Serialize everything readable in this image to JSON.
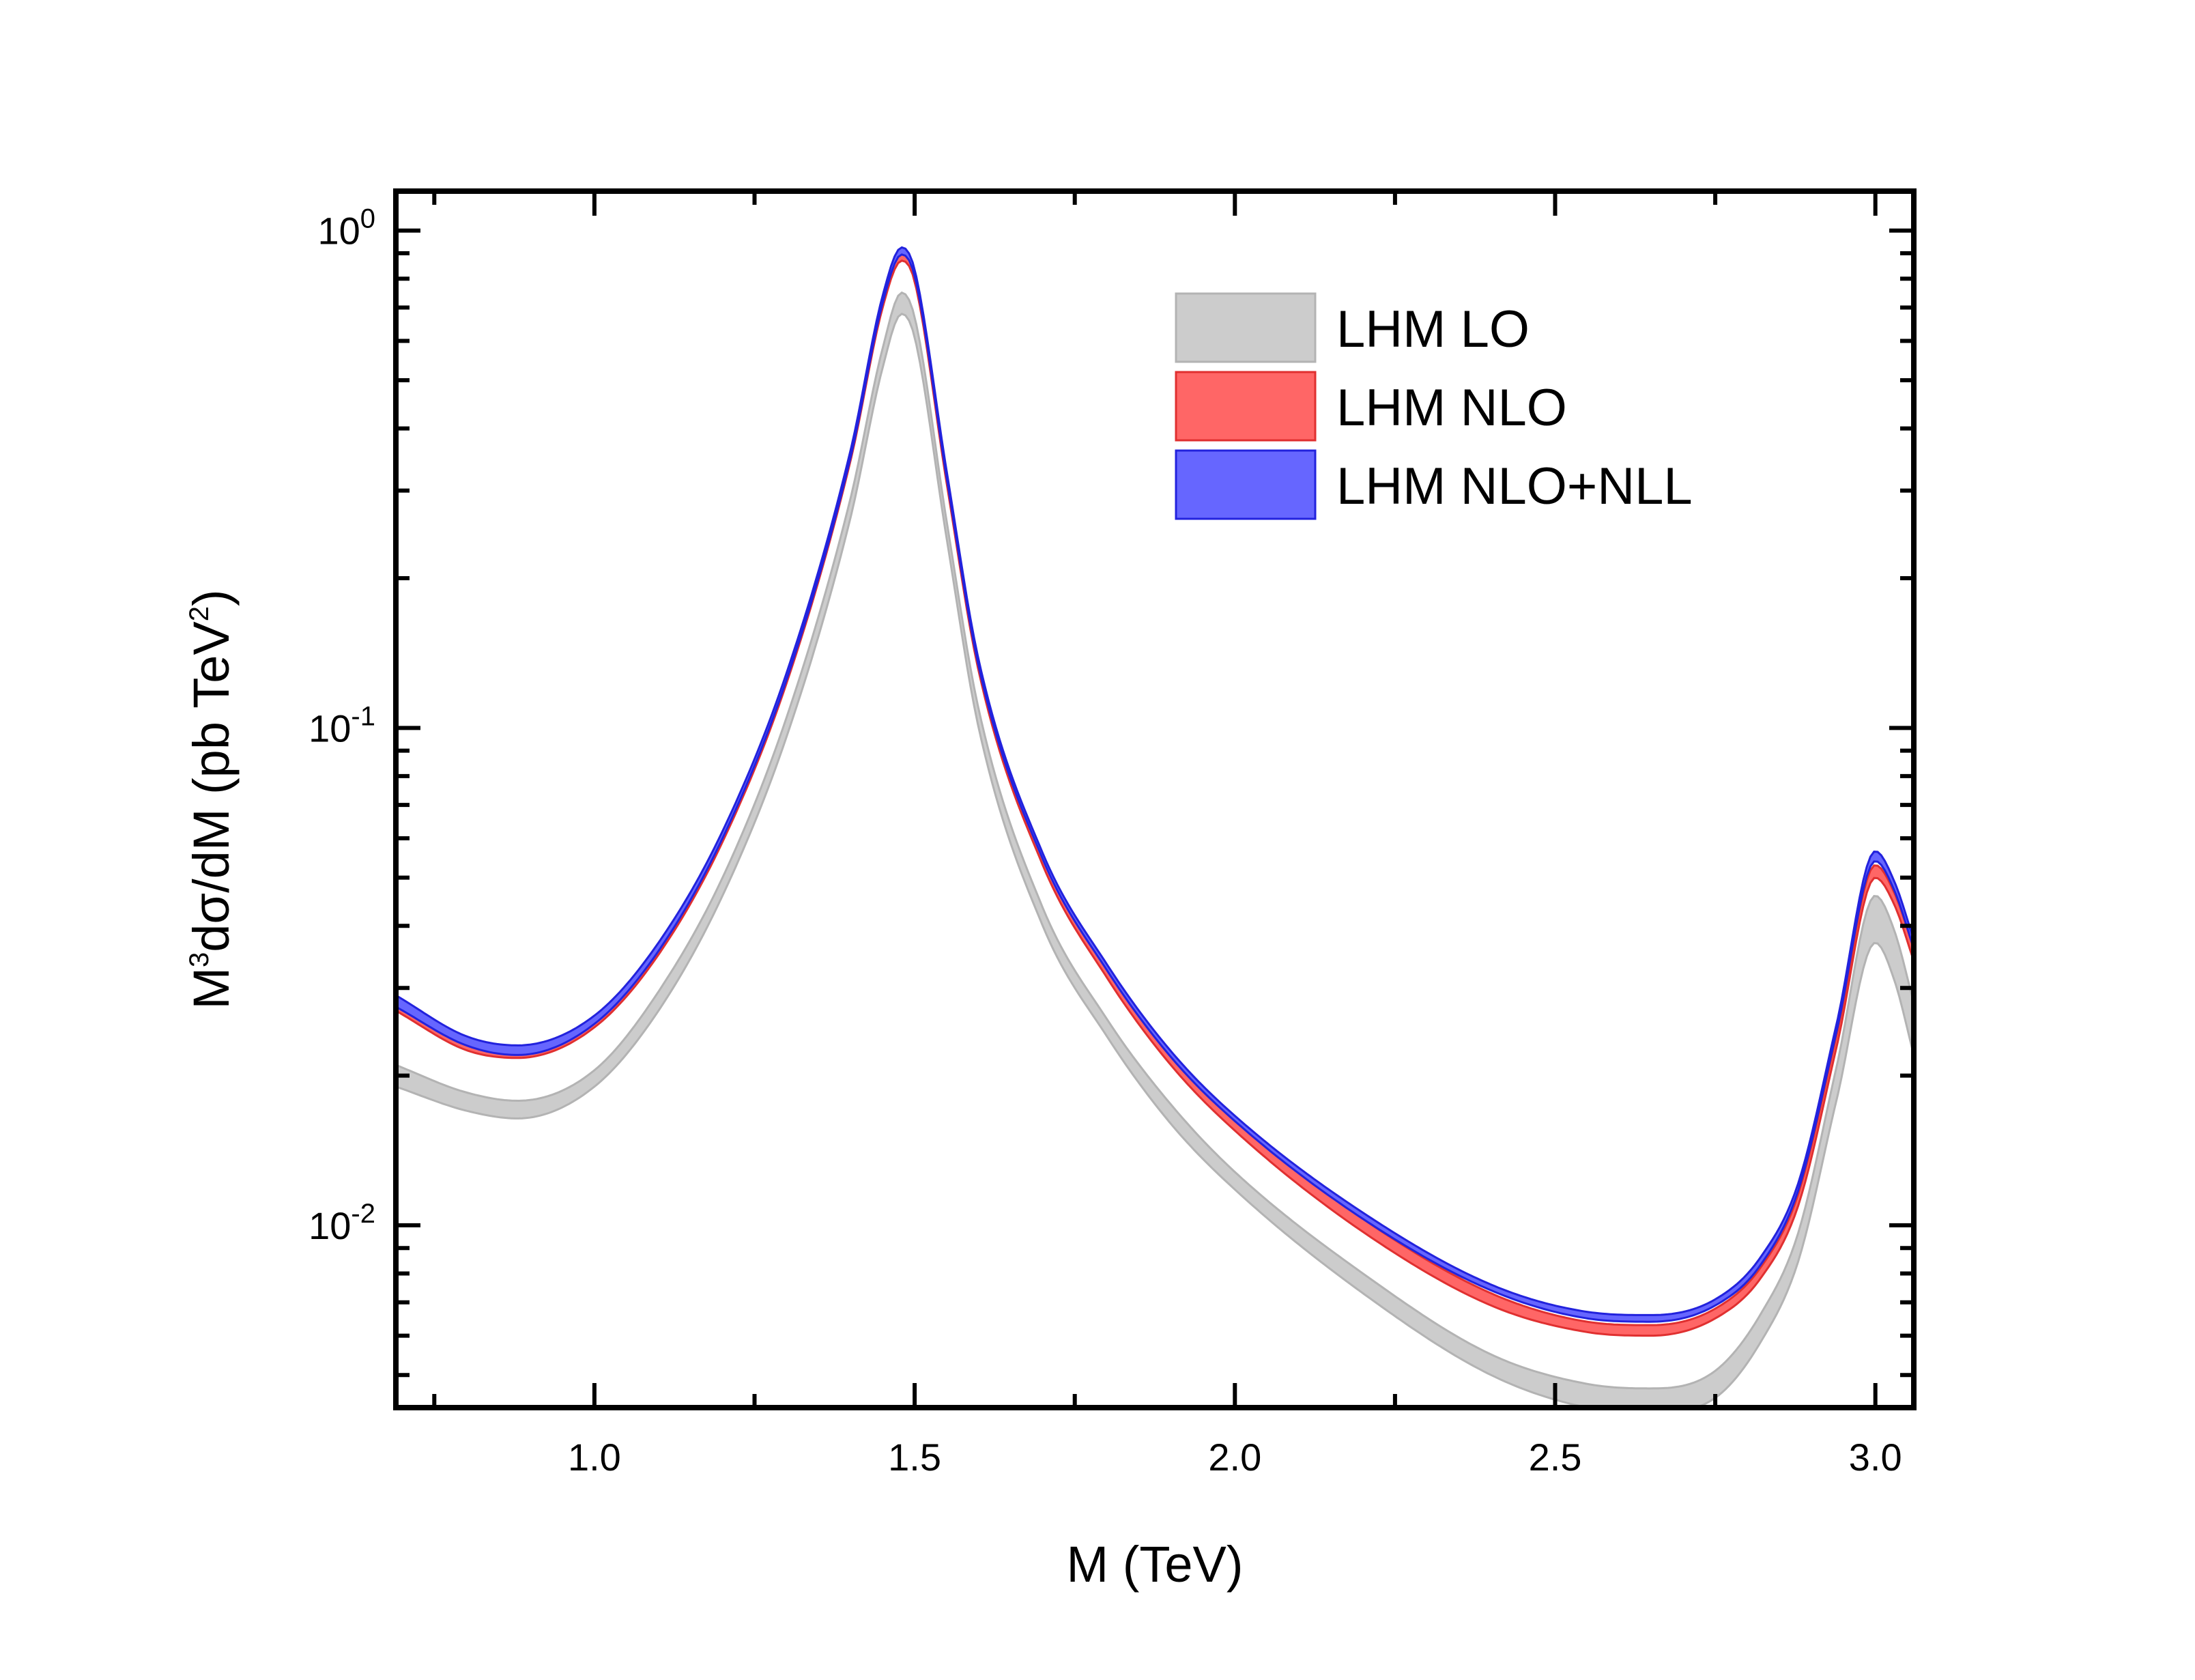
{
  "chart_data": {
    "type": "area",
    "title": "",
    "xlabel": "M (TeV)",
    "ylabel": {
      "pre": "M",
      "pre_sup": "3",
      "mid": "dσ/dM (pb TeV",
      "mid_sup": "2",
      "post": ")"
    },
    "x_range": [
      0.69,
      3.06
    ],
    "y_range": [
      0.0043,
      1.2
    ],
    "y_scale": "log",
    "x_ticks": [
      {
        "value": 1.0,
        "label": "1.0"
      },
      {
        "value": 1.5,
        "label": "1.5"
      },
      {
        "value": 2.0,
        "label": "2.0"
      },
      {
        "value": 2.5,
        "label": "2.5"
      },
      {
        "value": 3.0,
        "label": "3.0"
      }
    ],
    "y_ticks": [
      {
        "value": 1.0,
        "base": "10",
        "exp": "0"
      },
      {
        "value": 0.1,
        "base": "10",
        "exp": "-1"
      },
      {
        "value": 0.01,
        "base": "10",
        "exp": "-2"
      }
    ],
    "legend_position": "top-right",
    "series": [
      {
        "name": "LHM LO",
        "fill": "#cccccc",
        "stroke": "#b3b3b3",
        "x": [
          0.69,
          0.8,
          0.88,
          1.0,
          1.1,
          1.2,
          1.3,
          1.4,
          1.45,
          1.48,
          1.5,
          1.55,
          1.6,
          1.7,
          1.8,
          1.9,
          2.0,
          2.2,
          2.4,
          2.55,
          2.65,
          2.75,
          2.82,
          2.88,
          2.94,
          3.0,
          3.03,
          3.06
        ],
        "low": [
          0.019,
          0.017,
          0.0164,
          0.019,
          0.027,
          0.046,
          0.096,
          0.265,
          0.53,
          0.68,
          0.61,
          0.24,
          0.1,
          0.04,
          0.024,
          0.016,
          0.0118,
          0.0073,
          0.005,
          0.0043,
          0.0042,
          0.0045,
          0.0058,
          0.0085,
          0.018,
          0.037,
          0.031,
          0.022
        ],
        "high": [
          0.021,
          0.0185,
          0.0178,
          0.0205,
          0.0295,
          0.05,
          0.105,
          0.29,
          0.58,
          0.75,
          0.67,
          0.26,
          0.109,
          0.0435,
          0.026,
          0.0175,
          0.0128,
          0.008,
          0.0055,
          0.0048,
          0.0047,
          0.0051,
          0.0066,
          0.0097,
          0.021,
          0.046,
          0.039,
          0.028
        ]
      },
      {
        "name": "LHM NLO",
        "fill": "#ff6666",
        "stroke": "#e03030",
        "x": [
          0.69,
          0.8,
          0.88,
          1.0,
          1.1,
          1.2,
          1.3,
          1.4,
          1.45,
          1.48,
          1.5,
          1.55,
          1.6,
          1.7,
          1.8,
          1.9,
          2.0,
          2.2,
          2.4,
          2.55,
          2.65,
          2.75,
          2.82,
          2.88,
          2.94,
          3.0,
          3.03,
          3.06
        ],
        "low": [
          0.027,
          0.0225,
          0.0217,
          0.025,
          0.035,
          0.059,
          0.123,
          0.345,
          0.7,
          0.87,
          0.79,
          0.31,
          0.13,
          0.053,
          0.0315,
          0.021,
          0.0155,
          0.0097,
          0.0069,
          0.0061,
          0.006,
          0.0065,
          0.0078,
          0.011,
          0.023,
          0.05,
          0.044,
          0.034
        ],
        "high": [
          0.0285,
          0.0236,
          0.0226,
          0.026,
          0.0365,
          0.0612,
          0.1275,
          0.357,
          0.725,
          0.91,
          0.82,
          0.322,
          0.135,
          0.055,
          0.033,
          0.022,
          0.0163,
          0.0103,
          0.0073,
          0.0064,
          0.0063,
          0.0068,
          0.0082,
          0.0116,
          0.0243,
          0.053,
          0.0465,
          0.036
        ]
      },
      {
        "name": "LHM NLO+NLL",
        "fill": "#6666ff",
        "stroke": "#2222dd",
        "x": [
          0.69,
          0.8,
          0.88,
          1.0,
          1.1,
          1.2,
          1.3,
          1.4,
          1.45,
          1.48,
          1.5,
          1.55,
          1.6,
          1.7,
          1.8,
          1.9,
          2.0,
          2.2,
          2.4,
          2.55,
          2.65,
          2.75,
          2.82,
          2.88,
          2.94,
          3.0,
          3.03,
          3.06
        ],
        "low": [
          0.0275,
          0.023,
          0.022,
          0.0254,
          0.0356,
          0.06,
          0.125,
          0.35,
          0.715,
          0.895,
          0.81,
          0.318,
          0.133,
          0.0545,
          0.0326,
          0.0218,
          0.0162,
          0.0103,
          0.0074,
          0.0065,
          0.0064,
          0.0069,
          0.0083,
          0.0118,
          0.0247,
          0.054,
          0.047,
          0.036
        ],
        "high": [
          0.029,
          0.024,
          0.023,
          0.0264,
          0.037,
          0.062,
          0.129,
          0.362,
          0.74,
          0.925,
          0.835,
          0.328,
          0.137,
          0.056,
          0.0335,
          0.0224,
          0.0166,
          0.0106,
          0.0076,
          0.0067,
          0.0066,
          0.0071,
          0.0086,
          0.0122,
          0.0256,
          0.0565,
          0.049,
          0.0375
        ]
      }
    ]
  }
}
